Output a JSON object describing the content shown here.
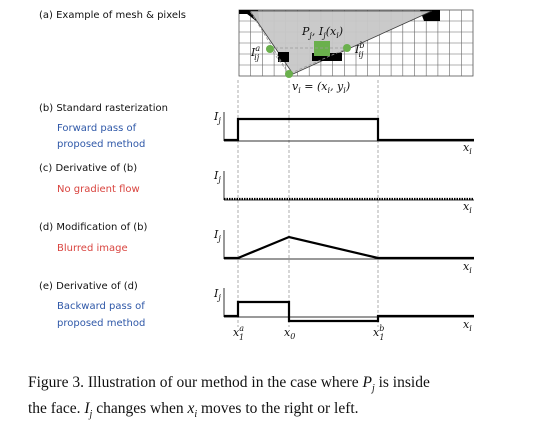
{
  "panels": {
    "a_title": "(a) Example of mesh & pixels",
    "b_title": "(b) Standard rasterization",
    "b_note_1": "Forward pass of",
    "b_note_2": "proposed method",
    "c_title": "(c) Derivative of (b)",
    "c_note": "No gradient flow",
    "d_title": "(d) Modification of (b)",
    "d_note": "Blurred image",
    "e_title": "(e) Derivative of (d)",
    "e_note_1": "Backward pass of",
    "e_note_2": "proposed method"
  },
  "labels": {
    "pj": "P",
    "pj_sub": "j",
    "ij_xi": ", I",
    "ij_sub": "j",
    "ij_arg": "(x",
    "ij_arg_sub": "i",
    "ij_close": ")",
    "ia": "I",
    "ia_sup": "a",
    "ia_sub": "ij",
    "ib": "I",
    "ib_sup": "b",
    "ib_sub": "ij",
    "vi": "v",
    "vi_sub": "i",
    "vi_eq": " = (x",
    "vi_x_sub": "i",
    "vi_comma": ", y",
    "vi_y_sub": "i",
    "vi_close": ")",
    "y_axis": "I",
    "y_axis_sub": "j",
    "x_axis": "x",
    "x_axis_sub": "i",
    "x1a": "x",
    "x1a_sup": "a",
    "x1a_sub": "1",
    "x0": "x",
    "x0_sub": "0",
    "x1b": "x",
    "x1b_sup": "b",
    "x1b_sub": "1"
  },
  "caption": {
    "line1_a": "Figure 3. Illustration of our method in the case where ",
    "line1_var": "P",
    "line1_var_sub": "j",
    "line1_b": " is inside",
    "line2_a": "the face. ",
    "line2_var": "I",
    "line2_var_sub": "j",
    "line2_b": " changes when ",
    "line2_var2": "x",
    "line2_var2_sub": "i",
    "line2_c": " moves to the right or left."
  },
  "colors": {
    "blue_note": "#2f58a8",
    "red_note": "#d9443f",
    "vertex_green": "#6ab04c",
    "pixel_green": "#6ab04c",
    "triangle_gray": "#c8c8c8"
  }
}
